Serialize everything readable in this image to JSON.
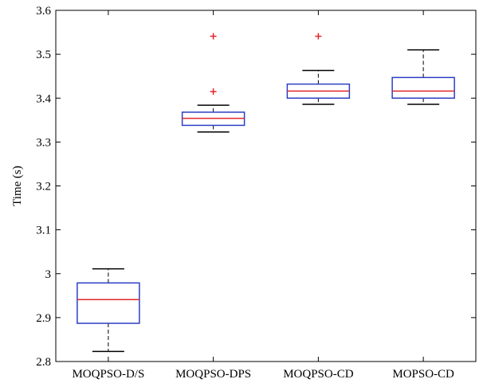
{
  "chart_data": {
    "type": "box",
    "title": "",
    "xlabel": "",
    "ylabel": "Time (s)",
    "ylim": [
      2.8,
      3.6
    ],
    "yticks": [
      "2.8",
      "2.9",
      "3",
      "3.1",
      "3.2",
      "3.3",
      "3.4",
      "3.5",
      "3.6"
    ],
    "grid": false,
    "box_color": "#2b3fc4",
    "median_color": "#e3262b",
    "outlier_color": "#e3262b",
    "whisker_color": "#000000",
    "categories": [
      "MOQPSO-D/S",
      "MOQPSO-DPS",
      "MOQPSO-CD",
      "MOPSO-CD"
    ],
    "boxes": [
      {
        "category": "MOQPSO-D/S",
        "whisker_low": 2.823,
        "q1": 2.887,
        "median": 2.941,
        "q3": 2.979,
        "whisker_high": 3.011,
        "outliers": []
      },
      {
        "category": "MOQPSO-DPS",
        "whisker_low": 3.323,
        "q1": 3.338,
        "median": 3.354,
        "q3": 3.368,
        "whisker_high": 3.384,
        "outliers": [
          3.415,
          3.541
        ]
      },
      {
        "category": "MOQPSO-CD",
        "whisker_low": 3.386,
        "q1": 3.4,
        "median": 3.416,
        "q3": 3.432,
        "whisker_high": 3.463,
        "outliers": [
          3.541
        ]
      },
      {
        "category": "MOPSO-CD",
        "whisker_low": 3.386,
        "q1": 3.4,
        "median": 3.416,
        "q3": 3.447,
        "whisker_high": 3.51,
        "outliers": []
      }
    ]
  }
}
